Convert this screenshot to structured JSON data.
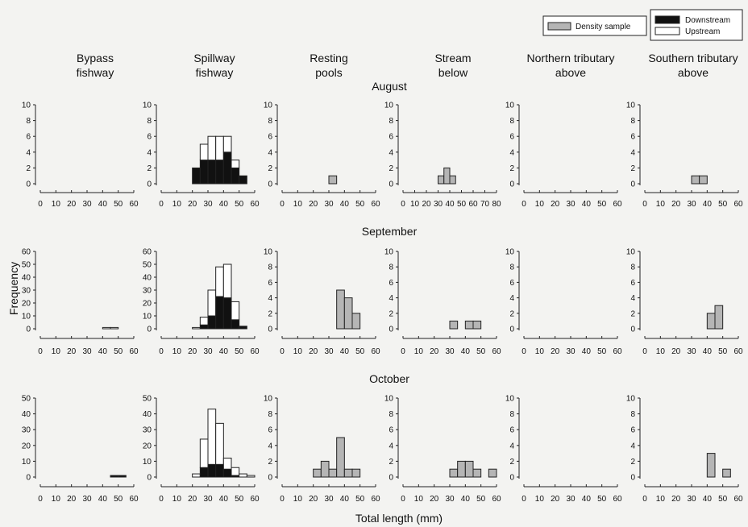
{
  "figure": {
    "column_headers": [
      [
        "Bypass",
        "fishway"
      ],
      [
        "Spillway",
        "fishway"
      ],
      [
        "Resting",
        "pools"
      ],
      [
        "Stream",
        "below"
      ],
      [
        "Northern tributary",
        "above"
      ],
      [
        "Southern tributary",
        "above"
      ]
    ],
    "months": [
      "August",
      "September",
      "October"
    ],
    "ylabel": "Frequency",
    "xlabel": "Total length (mm)",
    "legend": {
      "density": "Density sample",
      "downstream": "Downstream",
      "upstream": "Upstream"
    },
    "colors": {
      "downstream": "#111111",
      "upstream": "#ffffff",
      "density": "#b5b5b5",
      "stroke": "#222222",
      "background": "#f3f3f1"
    }
  },
  "chart_data": [
    {
      "type": "bar",
      "row": "August",
      "column": "Bypass fishway",
      "xlim": [
        0,
        60
      ],
      "xticks": [
        0,
        10,
        20,
        30,
        40,
        50,
        60
      ],
      "ylim": [
        0,
        10
      ],
      "yticks": [
        0,
        2,
        4,
        6,
        8,
        10
      ],
      "bins": []
    },
    {
      "type": "bar",
      "row": "August",
      "column": "Spillway fishway",
      "xlim": [
        0,
        60
      ],
      "xticks": [
        0,
        10,
        20,
        30,
        40,
        50,
        60
      ],
      "ylim": [
        0,
        10
      ],
      "yticks": [
        0,
        2,
        4,
        6,
        8,
        10
      ],
      "bins": [
        {
          "start": 20,
          "width": 5,
          "downstream": 2,
          "upstream": 0
        },
        {
          "start": 25,
          "width": 5,
          "downstream": 3,
          "upstream": 2
        },
        {
          "start": 30,
          "width": 5,
          "downstream": 3,
          "upstream": 3
        },
        {
          "start": 35,
          "width": 5,
          "downstream": 3,
          "upstream": 3
        },
        {
          "start": 40,
          "width": 5,
          "downstream": 4,
          "upstream": 2
        },
        {
          "start": 45,
          "width": 5,
          "downstream": 2,
          "upstream": 1
        },
        {
          "start": 50,
          "width": 5,
          "downstream": 1,
          "upstream": 0
        }
      ]
    },
    {
      "type": "bar",
      "row": "August",
      "column": "Resting pools",
      "xlim": [
        0,
        60
      ],
      "xticks": [
        0,
        10,
        20,
        30,
        40,
        50,
        60
      ],
      "ylim": [
        0,
        10
      ],
      "yticks": [
        0,
        2,
        4,
        6,
        8,
        10
      ],
      "bins": [
        {
          "start": 30,
          "width": 5,
          "density": 1
        }
      ]
    },
    {
      "type": "bar",
      "row": "August",
      "column": "Stream below",
      "xlim": [
        0,
        80
      ],
      "xticks": [
        0,
        10,
        20,
        30,
        40,
        50,
        60,
        70,
        80
      ],
      "ylim": [
        0,
        10
      ],
      "yticks": [
        0,
        2,
        4,
        6,
        8,
        10
      ],
      "bins": [
        {
          "start": 30,
          "width": 5,
          "density": 1
        },
        {
          "start": 35,
          "width": 5,
          "density": 2
        },
        {
          "start": 40,
          "width": 5,
          "density": 1
        }
      ]
    },
    {
      "type": "bar",
      "row": "August",
      "column": "Northern tributary above",
      "xlim": [
        0,
        60
      ],
      "xticks": [
        0,
        10,
        20,
        30,
        40,
        50,
        60
      ],
      "ylim": [
        0,
        10
      ],
      "yticks": [
        0,
        2,
        4,
        6,
        8,
        10
      ],
      "bins": []
    },
    {
      "type": "bar",
      "row": "August",
      "column": "Southern tributary above",
      "xlim": [
        0,
        60
      ],
      "xticks": [
        0,
        10,
        20,
        30,
        40,
        50,
        60
      ],
      "ylim": [
        0,
        10
      ],
      "yticks": [
        0,
        2,
        4,
        6,
        8,
        10
      ],
      "bins": [
        {
          "start": 30,
          "width": 5,
          "density": 1
        },
        {
          "start": 35,
          "width": 5,
          "density": 1
        }
      ]
    },
    {
      "type": "bar",
      "row": "September",
      "column": "Bypass fishway",
      "xlim": [
        0,
        60
      ],
      "xticks": [
        0,
        10,
        20,
        30,
        40,
        50,
        60
      ],
      "ylim": [
        0,
        60
      ],
      "yticks": [
        0,
        10,
        20,
        30,
        40,
        50,
        60
      ],
      "bins": [
        {
          "start": 40,
          "width": 5,
          "downstream": 0,
          "upstream": 1
        },
        {
          "start": 45,
          "width": 5,
          "downstream": 0,
          "upstream": 1
        }
      ]
    },
    {
      "type": "bar",
      "row": "September",
      "column": "Spillway fishway",
      "xlim": [
        0,
        60
      ],
      "xticks": [
        0,
        10,
        20,
        30,
        40,
        50,
        60
      ],
      "ylim": [
        0,
        60
      ],
      "yticks": [
        0,
        10,
        20,
        30,
        40,
        50,
        60
      ],
      "bins": [
        {
          "start": 20,
          "width": 5,
          "downstream": 0,
          "upstream": 1
        },
        {
          "start": 25,
          "width": 5,
          "downstream": 3,
          "upstream": 6
        },
        {
          "start": 30,
          "width": 5,
          "downstream": 10,
          "upstream": 20
        },
        {
          "start": 35,
          "width": 5,
          "downstream": 25,
          "upstream": 23
        },
        {
          "start": 40,
          "width": 5,
          "downstream": 24,
          "upstream": 26
        },
        {
          "start": 45,
          "width": 5,
          "downstream": 7,
          "upstream": 14
        },
        {
          "start": 50,
          "width": 5,
          "downstream": 2,
          "upstream": 0
        }
      ]
    },
    {
      "type": "bar",
      "row": "September",
      "column": "Resting pools",
      "xlim": [
        0,
        60
      ],
      "xticks": [
        0,
        10,
        20,
        30,
        40,
        50,
        60
      ],
      "ylim": [
        0,
        10
      ],
      "yticks": [
        0,
        2,
        4,
        6,
        8,
        10
      ],
      "bins": [
        {
          "start": 35,
          "width": 5,
          "density": 5
        },
        {
          "start": 40,
          "width": 5,
          "density": 4
        },
        {
          "start": 45,
          "width": 5,
          "density": 2
        }
      ]
    },
    {
      "type": "bar",
      "row": "September",
      "column": "Stream below",
      "xlim": [
        0,
        60
      ],
      "xticks": [
        0,
        10,
        20,
        30,
        40,
        50,
        60
      ],
      "ylim": [
        0,
        10
      ],
      "yticks": [
        0,
        2,
        4,
        6,
        8,
        10
      ],
      "bins": [
        {
          "start": 30,
          "width": 5,
          "density": 1
        },
        {
          "start": 40,
          "width": 5,
          "density": 1
        },
        {
          "start": 45,
          "width": 5,
          "density": 1
        }
      ]
    },
    {
      "type": "bar",
      "row": "September",
      "column": "Northern tributary above",
      "xlim": [
        0,
        60
      ],
      "xticks": [
        0,
        10,
        20,
        30,
        40,
        50,
        60
      ],
      "ylim": [
        0,
        10
      ],
      "yticks": [
        0,
        2,
        4,
        6,
        8,
        10
      ],
      "bins": []
    },
    {
      "type": "bar",
      "row": "September",
      "column": "Southern tributary above",
      "xlim": [
        0,
        60
      ],
      "xticks": [
        0,
        10,
        20,
        30,
        40,
        50,
        60
      ],
      "ylim": [
        0,
        10
      ],
      "yticks": [
        0,
        2,
        4,
        6,
        8,
        10
      ],
      "bins": [
        {
          "start": 40,
          "width": 5,
          "density": 2
        },
        {
          "start": 45,
          "width": 5,
          "density": 3
        }
      ]
    },
    {
      "type": "bar",
      "row": "October",
      "column": "Bypass fishway",
      "xlim": [
        0,
        60
      ],
      "xticks": [
        0,
        10,
        20,
        30,
        40,
        50,
        60
      ],
      "ylim": [
        0,
        50
      ],
      "yticks": [
        0,
        10,
        20,
        30,
        40,
        50
      ],
      "bins": [
        {
          "start": 45,
          "width": 5,
          "downstream": 1,
          "upstream": 0
        },
        {
          "start": 50,
          "width": 5,
          "downstream": 1,
          "upstream": 0
        }
      ]
    },
    {
      "type": "bar",
      "row": "October",
      "column": "Spillway fishway",
      "xlim": [
        0,
        60
      ],
      "xticks": [
        0,
        10,
        20,
        30,
        40,
        50,
        60
      ],
      "ylim": [
        0,
        50
      ],
      "yticks": [
        0,
        10,
        20,
        30,
        40,
        50
      ],
      "bins": [
        {
          "start": 20,
          "width": 5,
          "downstream": 0,
          "upstream": 2
        },
        {
          "start": 25,
          "width": 5,
          "downstream": 6,
          "upstream": 18
        },
        {
          "start": 30,
          "width": 5,
          "downstream": 8,
          "upstream": 35
        },
        {
          "start": 35,
          "width": 5,
          "downstream": 8,
          "upstream": 26
        },
        {
          "start": 40,
          "width": 5,
          "downstream": 5,
          "upstream": 7
        },
        {
          "start": 45,
          "width": 5,
          "downstream": 1,
          "upstream": 5
        },
        {
          "start": 50,
          "width": 5,
          "downstream": 0,
          "upstream": 2
        },
        {
          "start": 55,
          "width": 5,
          "downstream": 0,
          "upstream": 1
        }
      ]
    },
    {
      "type": "bar",
      "row": "October",
      "column": "Resting pools",
      "xlim": [
        0,
        60
      ],
      "xticks": [
        0,
        10,
        20,
        30,
        40,
        50,
        60
      ],
      "ylim": [
        0,
        10
      ],
      "yticks": [
        0,
        2,
        4,
        6,
        8,
        10
      ],
      "bins": [
        {
          "start": 20,
          "width": 5,
          "density": 1
        },
        {
          "start": 25,
          "width": 5,
          "density": 2
        },
        {
          "start": 30,
          "width": 5,
          "density": 1
        },
        {
          "start": 35,
          "width": 5,
          "density": 5
        },
        {
          "start": 40,
          "width": 5,
          "density": 1
        },
        {
          "start": 45,
          "width": 5,
          "density": 1
        }
      ]
    },
    {
      "type": "bar",
      "row": "October",
      "column": "Stream below",
      "xlim": [
        0,
        60
      ],
      "xticks": [
        0,
        10,
        20,
        30,
        40,
        50,
        60
      ],
      "ylim": [
        0,
        10
      ],
      "yticks": [
        0,
        2,
        4,
        6,
        8,
        10
      ],
      "bins": [
        {
          "start": 30,
          "width": 5,
          "density": 1
        },
        {
          "start": 35,
          "width": 5,
          "density": 2
        },
        {
          "start": 40,
          "width": 5,
          "density": 2
        },
        {
          "start": 45,
          "width": 5,
          "density": 1
        },
        {
          "start": 55,
          "width": 5,
          "density": 1
        }
      ]
    },
    {
      "type": "bar",
      "row": "October",
      "column": "Northern tributary above",
      "xlim": [
        0,
        60
      ],
      "xticks": [
        0,
        10,
        20,
        30,
        40,
        50,
        60
      ],
      "ylim": [
        0,
        10
      ],
      "yticks": [
        0,
        2,
        4,
        6,
        8,
        10
      ],
      "bins": []
    },
    {
      "type": "bar",
      "row": "October",
      "column": "Southern tributary above",
      "xlim": [
        0,
        60
      ],
      "xticks": [
        0,
        10,
        20,
        30,
        40,
        50,
        60
      ],
      "ylim": [
        0,
        10
      ],
      "yticks": [
        0,
        2,
        4,
        6,
        8,
        10
      ],
      "bins": [
        {
          "start": 40,
          "width": 5,
          "density": 3
        },
        {
          "start": 50,
          "width": 5,
          "density": 1
        }
      ]
    }
  ]
}
